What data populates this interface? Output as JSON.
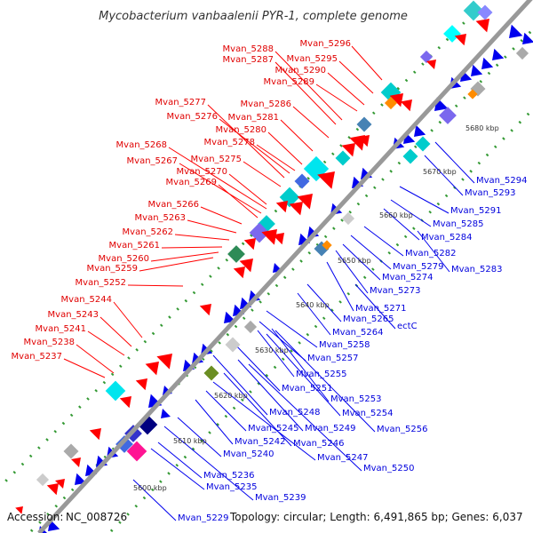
{
  "title": "Mycobacterium vanbaalenii PYR-1, complete genome",
  "footer": {
    "accession_label": "Accession:",
    "accession": "NC_008726",
    "rest": "Topology: circular; Length: 6,491,865 bp; Genes: 6,037"
  },
  "colors": {
    "forward_label": "#e00000",
    "reverse_label": "#0000dd",
    "backbone": "#999999",
    "forward_arrow": "#ff0000",
    "reverse_arrow": "#0000ee",
    "dot_track": "#339933"
  },
  "ticks": [
    "5600 kbp",
    "5610 kbp",
    "5620 kbp",
    "5630 kbp",
    "5640 kbp",
    "5650 kbp",
    "5660 kbp",
    "5670 kbp",
    "5680 kbp"
  ],
  "forward_labels": [
    "Mvan_5296",
    "Mvan_5288",
    "Mvan_5287",
    "Mvan_5295",
    "Mvan_5290",
    "Mvan_5289",
    "Mvan_5286",
    "Mvan_5277",
    "Mvan_5281",
    "Mvan_5276",
    "Mvan_5280",
    "Mvan_5278",
    "Mvan_5268",
    "Mvan_5275",
    "Mvan_5267",
    "Mvan_5270",
    "Mvan_5269",
    "Mvan_5266",
    "Mvan_5263",
    "Mvan_5262",
    "Mvan_5261",
    "Mvan_5260",
    "Mvan_5259",
    "Mvan_5252",
    "Mvan_5244",
    "Mvan_5243",
    "Mvan_5241",
    "Mvan_5238",
    "Mvan_5237"
  ],
  "reverse_labels": [
    "Mvan_5294",
    "Mvan_5293",
    "Mvan_5291",
    "Mvan_5285",
    "Mvan_5284",
    "Mvan_5282",
    "Mvan_5283",
    "Mvan_5279",
    "Mvan_5274",
    "Mvan_5273",
    "Mvan_5271",
    "Mvan_5265",
    "ectC",
    "Mvan_5264",
    "Mvan_5258",
    "Mvan_5257",
    "Mvan_5255",
    "Mvan_5251",
    "Mvan_5253",
    "Mvan_5254",
    "Mvan_5248",
    "Mvan_5256",
    "Mvan_5249",
    "Mvan_5245",
    "Mvan_5246",
    "Mvan_5242",
    "Mvan_5247",
    "Mvan_5240",
    "Mvan_5250",
    "Mvan_5236",
    "Mvan_5235",
    "Mvan_5239",
    "Mvan_5229"
  ]
}
